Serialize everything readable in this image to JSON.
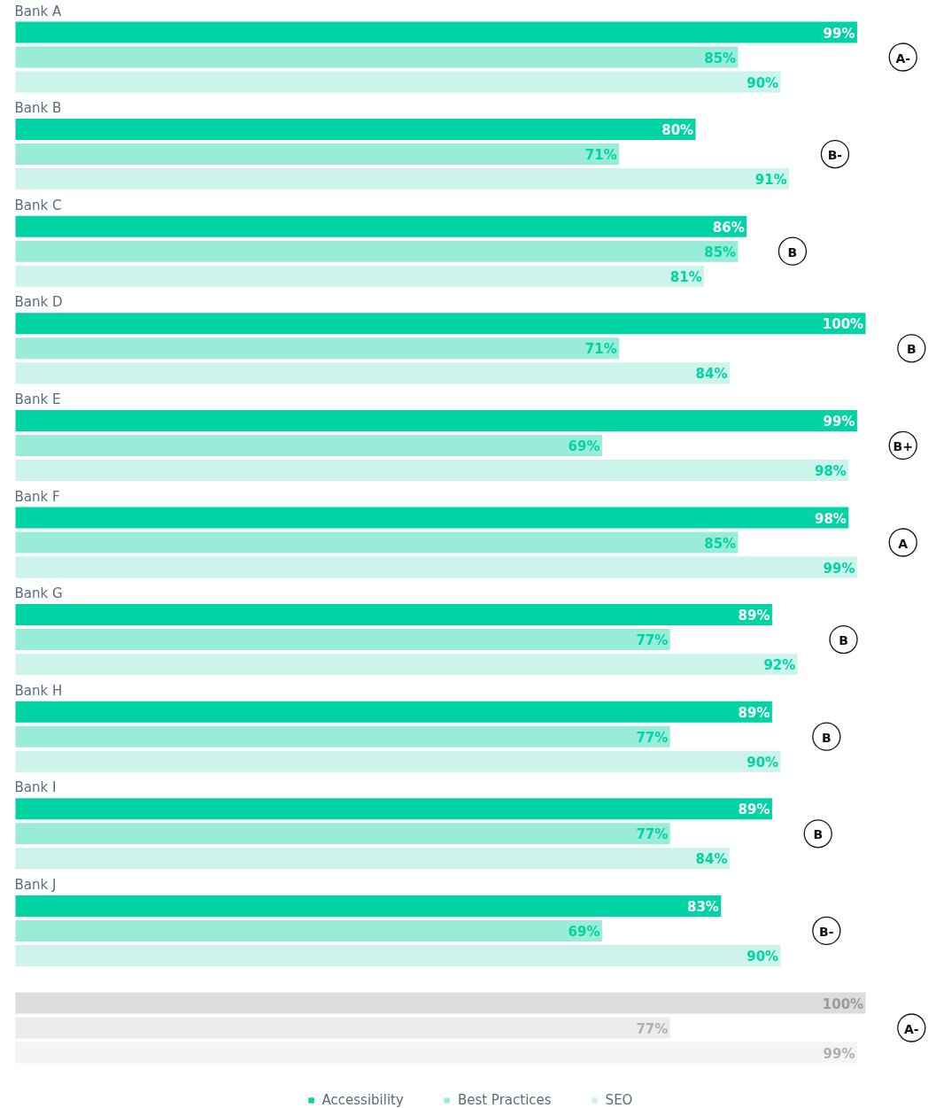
{
  "chart_data": {
    "type": "bar",
    "orientation": "horizontal",
    "legend": "bottom",
    "grid": false,
    "categories": [
      "Bank A",
      "Bank B",
      "Bank C",
      "Bank D",
      "Bank E",
      "Bank F",
      "Bank G",
      "Bank H",
      "Bank I",
      "Bank J",
      null
    ],
    "series": [
      {
        "name": "Accessibility",
        "color": "#00d4a4",
        "colors": [
          "#00d4a4",
          "#00d4a4",
          "#00d4a4",
          "#00d4a4",
          "#00d4a4",
          "#00d4a4",
          "#00d4a4",
          "#00d4a4",
          "#00d4a4",
          "#00d4a4",
          "#dcdcdc"
        ],
        "values": [
          99,
          80,
          86,
          100,
          99,
          98,
          89,
          89,
          89,
          83,
          100
        ],
        "value_labels": [
          "99%",
          "80%",
          "86%",
          "100%",
          "99%",
          "98%",
          "89%",
          "89%",
          "89%",
          "83%",
          "100%"
        ]
      },
      {
        "name": "Best Practices",
        "color": "#99ecd8",
        "colors": [
          "#99ecd8",
          "#99ecd8",
          "#99ecd8",
          "#99ecd8",
          "#99ecd8",
          "#99ecd8",
          "#99ecd8",
          "#99ecd8",
          "#99ecd8",
          "#99ecd8",
          "#ececec"
        ],
        "values": [
          85,
          71,
          85,
          71,
          69,
          85,
          77,
          77,
          77,
          69,
          77
        ],
        "value_labels": [
          "85%",
          "71%",
          "85%",
          "71%",
          "69%",
          "85%",
          "77%",
          "77%",
          "77%",
          "69%",
          "77%"
        ]
      },
      {
        "name": "SEO",
        "color": "#ccf4ea",
        "colors": [
          "#ccf4ea",
          "#ccf4ea",
          "#ccf4ea",
          "#ccf4ea",
          "#ccf4ea",
          "#ccf4ea",
          "#ccf4ea",
          "#ccf4ea",
          "#ccf4ea",
          "#ccf4ea",
          "#f4f4f4"
        ],
        "values": [
          90,
          91,
          81,
          84,
          98,
          99,
          92,
          90,
          84,
          90,
          99
        ],
        "value_labels": [
          "90%",
          "91%",
          "81%",
          "84%",
          "98%",
          "99%",
          "92%",
          "90%",
          "84%",
          "90%",
          "99%"
        ]
      }
    ],
    "annotations": [
      "A-",
      "B-",
      "B",
      "B",
      "B+",
      "A",
      "B",
      "B",
      "B",
      "B-",
      "A-"
    ]
  }
}
